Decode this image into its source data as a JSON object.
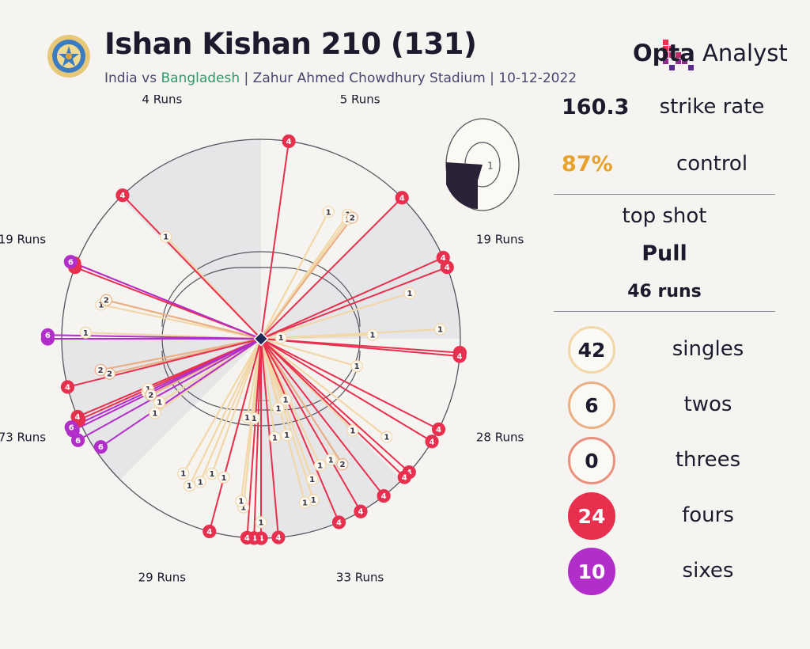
{
  "header": {
    "title": "Ishan Kishan 210 (131)",
    "subtitle_team1": "India",
    "subtitle_vs": " vs ",
    "subtitle_team2": "Bangladesh",
    "subtitle_rest": " | Zahur Ahmed Chowdhury Stadium | 10-12-2022",
    "logo_bold": "Opta",
    "logo_light": " Analyst",
    "emblem_icon": "bcci-emblem-icon"
  },
  "colors": {
    "single": "#f2d7a8",
    "two": "#eab085",
    "three": "#e9907f",
    "four": "#e8304e",
    "six": "#b22ecb",
    "zone": "#e6e5e8",
    "text": "#1e1a2e",
    "control": "#e8a12a",
    "subtitle_team2": "#2f9a6a"
  },
  "stats": {
    "strike_rate_value": "160.3",
    "strike_rate_label": "strike rate",
    "control_value": "87%",
    "control_label": "control",
    "top_shot_label": "top shot",
    "top_shot_name": "Pull",
    "top_shot_runs": "46 runs"
  },
  "counts": [
    {
      "value": "42",
      "label": "singles",
      "type": "single"
    },
    {
      "value": "6",
      "label": "twos",
      "type": "two"
    },
    {
      "value": "0",
      "label": "threes",
      "type": "three"
    },
    {
      "value": "24",
      "label": "fours",
      "type": "four"
    },
    {
      "value": "10",
      "label": "sixes",
      "type": "six"
    }
  ],
  "chart_data": {
    "type": "wagon-wheel",
    "title": "Ishan Kishan 210 (131)",
    "sectors": [
      {
        "label": "5 Runs",
        "runs": 5,
        "shaded": false
      },
      {
        "label": "19 Runs",
        "runs": 19,
        "shaded": true
      },
      {
        "label": "28 Runs",
        "runs": 28,
        "shaded": false
      },
      {
        "label": "33 Runs",
        "runs": 33,
        "shaded": true
      },
      {
        "label": "29 Runs",
        "runs": 29,
        "shaded": false
      },
      {
        "label": "73 Runs",
        "runs": 73,
        "shaded": true
      },
      {
        "label": "19 Runs",
        "runs": 19,
        "shaded": false
      },
      {
        "label": "4 Runs",
        "runs": 4,
        "shaded": true
      }
    ],
    "shots": [
      {
        "runs": 4,
        "angle": 8,
        "dist": 1.0
      },
      {
        "runs": 4,
        "angle": -44,
        "dist": 1.0
      },
      {
        "runs": 1,
        "angle": -43,
        "dist": 0.7
      },
      {
        "runs": 1,
        "angle": 28,
        "dist": 0.72
      },
      {
        "runs": 1,
        "angle": 35,
        "dist": 0.76
      },
      {
        "runs": 2,
        "angle": 37,
        "dist": 0.76
      },
      {
        "runs": 1,
        "angle": 36,
        "dist": 0.74
      },
      {
        "runs": 4,
        "angle": 45,
        "dist": 1.0
      },
      {
        "runs": 4,
        "angle": 66,
        "dist": 1.0
      },
      {
        "runs": 4,
        "angle": 69,
        "dist": 1.0
      },
      {
        "runs": 1,
        "angle": 73,
        "dist": 0.78
      },
      {
        "runs": 1,
        "angle": 87,
        "dist": 0.9
      },
      {
        "runs": 1,
        "angle": 88,
        "dist": 0.56
      },
      {
        "runs": 1,
        "angle": 87,
        "dist": 0.1
      },
      {
        "runs": 4,
        "angle": 94,
        "dist": 1.0
      },
      {
        "runs": 4,
        "angle": 95,
        "dist": 1.0
      },
      {
        "runs": 1,
        "angle": 106,
        "dist": 0.5
      },
      {
        "runs": 4,
        "angle": 117,
        "dist": 1.0
      },
      {
        "runs": 4,
        "angle": 121,
        "dist": 1.0
      },
      {
        "runs": 1,
        "angle": 128,
        "dist": 0.8
      },
      {
        "runs": 4,
        "angle": 132,
        "dist": 1.0
      },
      {
        "runs": 4,
        "angle": 134,
        "dist": 1.0
      },
      {
        "runs": 1,
        "angle": 135,
        "dist": 0.65
      },
      {
        "runs": 4,
        "angle": 142,
        "dist": 1.0
      },
      {
        "runs": 2,
        "angle": 147,
        "dist": 0.75
      },
      {
        "runs": 4,
        "angle": 150,
        "dist": 1.0
      },
      {
        "runs": 1,
        "angle": 150,
        "dist": 0.7
      },
      {
        "runs": 4,
        "angle": 157,
        "dist": 1.0
      },
      {
        "runs": 1,
        "angle": 155,
        "dist": 0.7
      },
      {
        "runs": 1,
        "angle": 160,
        "dist": 0.75
      },
      {
        "runs": 1,
        "angle": 162,
        "dist": 0.85
      },
      {
        "runs": 1,
        "angle": 165,
        "dist": 0.85
      },
      {
        "runs": 1,
        "angle": 158,
        "dist": 0.33
      },
      {
        "runs": 1,
        "angle": 166,
        "dist": 0.36
      },
      {
        "runs": 1,
        "angle": 165,
        "dist": 0.5
      },
      {
        "runs": 1,
        "angle": 172,
        "dist": 0.5
      },
      {
        "runs": 4,
        "angle": 175,
        "dist": 1.0
      },
      {
        "runs": 4,
        "angle": 180,
        "dist": 1.0
      },
      {
        "runs": 4,
        "angle": 182,
        "dist": 1.0
      },
      {
        "runs": 4,
        "angle": 184,
        "dist": 1.0
      },
      {
        "runs": 1,
        "angle": 180,
        "dist": 0.92
      },
      {
        "runs": 1,
        "angle": 186,
        "dist": 0.85
      },
      {
        "runs": 1,
        "angle": 187,
        "dist": 0.82
      },
      {
        "runs": 1,
        "angle": 185,
        "dist": 0.4
      },
      {
        "runs": 1,
        "angle": 190,
        "dist": 0.4
      },
      {
        "runs": 4,
        "angle": 195,
        "dist": 1.0
      },
      {
        "runs": 1,
        "angle": 195,
        "dist": 0.72
      },
      {
        "runs": 1,
        "angle": 200,
        "dist": 0.72
      },
      {
        "runs": 1,
        "angle": 203,
        "dist": 0.78
      },
      {
        "runs": 1,
        "angle": 206,
        "dist": 0.82
      },
      {
        "runs": 1,
        "angle": 210,
        "dist": 0.78
      },
      {
        "runs": 6,
        "angle": 236,
        "dist": 0.97
      },
      {
        "runs": 1,
        "angle": 235,
        "dist": 0.65
      },
      {
        "runs": 1,
        "angle": 238,
        "dist": 0.6
      },
      {
        "runs": 6,
        "angle": 241,
        "dist": 1.05
      },
      {
        "runs": 6,
        "angle": 244,
        "dist": 1.05
      },
      {
        "runs": 6,
        "angle": 245,
        "dist": 1.05
      },
      {
        "runs": 2,
        "angle": 243,
        "dist": 0.62
      },
      {
        "runs": 1,
        "angle": 245,
        "dist": 0.63
      },
      {
        "runs": 4,
        "angle": 246,
        "dist": 1.0
      },
      {
        "runs": 1,
        "angle": 246,
        "dist": 0.62
      },
      {
        "runs": 4,
        "angle": 247,
        "dist": 1.0
      },
      {
        "runs": 4,
        "angle": 256,
        "dist": 1.0
      },
      {
        "runs": 2,
        "angle": 257,
        "dist": 0.78
      },
      {
        "runs": 2,
        "angle": 259,
        "dist": 0.82
      },
      {
        "runs": 1,
        "angle": 272,
        "dist": 0.88
      },
      {
        "runs": 6,
        "angle": 270,
        "dist": 1.07
      },
      {
        "runs": 6,
        "angle": 271,
        "dist": 1.07
      },
      {
        "runs": 1,
        "angle": 282,
        "dist": 0.82
      },
      {
        "runs": 2,
        "angle": 284,
        "dist": 0.8
      },
      {
        "runs": 1,
        "angle": 284,
        "dist": 0.8
      },
      {
        "runs": 4,
        "angle": 291,
        "dist": 1.0
      },
      {
        "runs": 6,
        "angle": 292,
        "dist": 1.03
      },
      {
        "runs": 4,
        "angle": 292,
        "dist": 1.01
      }
    ]
  },
  "pitch_map": {
    "icon": "pitch-length-icon",
    "label": "1"
  }
}
